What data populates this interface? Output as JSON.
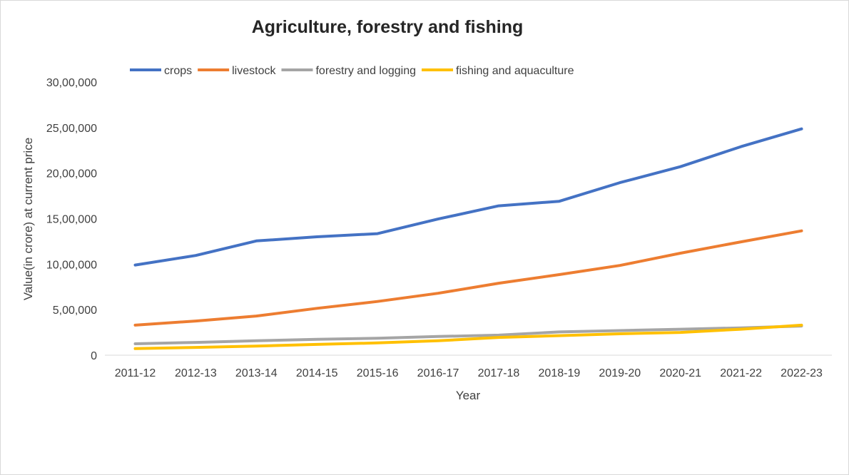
{
  "chart_data": {
    "type": "line",
    "title": "Agriculture, forestry and fishing",
    "xlabel": "Year",
    "ylabel": "Value(in crore) at current price",
    "categories": [
      "2011-12",
      "2012-13",
      "2013-14",
      "2014-15",
      "2015-16",
      "2016-17",
      "2017-18",
      "2018-19",
      "2019-20",
      "2020-21",
      "2021-22",
      "2022-23"
    ],
    "ylim": [
      0,
      3000000
    ],
    "yticks": [
      0,
      500000,
      1000000,
      1500000,
      2000000,
      2500000,
      3000000
    ],
    "ytick_labels": [
      "0",
      "5,00,000",
      "10,00,000",
      "15,00,000",
      "20,00,000",
      "25,00,000",
      "30,00,000"
    ],
    "grid": false,
    "legend_position": "top",
    "series": [
      {
        "name": "crops",
        "color": "#4472C4",
        "values": [
          990000,
          1095000,
          1255000,
          1300000,
          1335000,
          1495000,
          1640000,
          1690000,
          1895000,
          2070000,
          2290000,
          2485000
        ]
      },
      {
        "name": "livestock",
        "color": "#ED7D31",
        "values": [
          330000,
          375000,
          430000,
          515000,
          590000,
          680000,
          790000,
          885000,
          985000,
          1120000,
          1245000,
          1365000
        ]
      },
      {
        "name": "forestry and logging",
        "color": "#A5A5A5",
        "values": [
          125000,
          140000,
          158000,
          175000,
          186000,
          205000,
          220000,
          255000,
          270000,
          285000,
          300000,
          320000
        ]
      },
      {
        "name": "fishing and aquaculture",
        "color": "#FFC000",
        "values": [
          72000,
          85000,
          100000,
          118000,
          135000,
          158000,
          195000,
          215000,
          235000,
          250000,
          285000,
          330000
        ]
      }
    ]
  }
}
